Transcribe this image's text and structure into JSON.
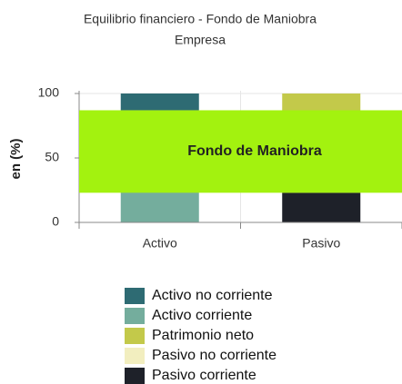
{
  "chart_data": {
    "type": "stacked_bar",
    "title": "Equilibrio financiero - Fondo de Maniobra",
    "subtitle": "Empresa",
    "y_label": "en (%)",
    "categories": [
      "Activo",
      "Pasivo"
    ],
    "series": [
      {
        "name": "Activo no corriente",
        "color": "#2e6b73",
        "values": [
          13,
          0
        ]
      },
      {
        "name": "Activo corriente",
        "color": "#74ad9d",
        "values": [
          87,
          0
        ]
      },
      {
        "name": "Patrimonio neto",
        "color": "#c3c94a",
        "values": [
          0,
          77
        ]
      },
      {
        "name": "Pasivo no corriente",
        "color": "#f2eebf",
        "values": [
          0,
          0
        ]
      },
      {
        "name": "Pasivo corriente",
        "color": "#1e2129",
        "values": [
          0,
          23
        ]
      }
    ],
    "overlay": {
      "label": "Fondo de Maniobra",
      "range": [
        23,
        87
      ],
      "color": "#a3f20f"
    },
    "ylim": [
      0,
      100
    ],
    "yticks": [
      0,
      50,
      100
    ],
    "grid": true
  }
}
